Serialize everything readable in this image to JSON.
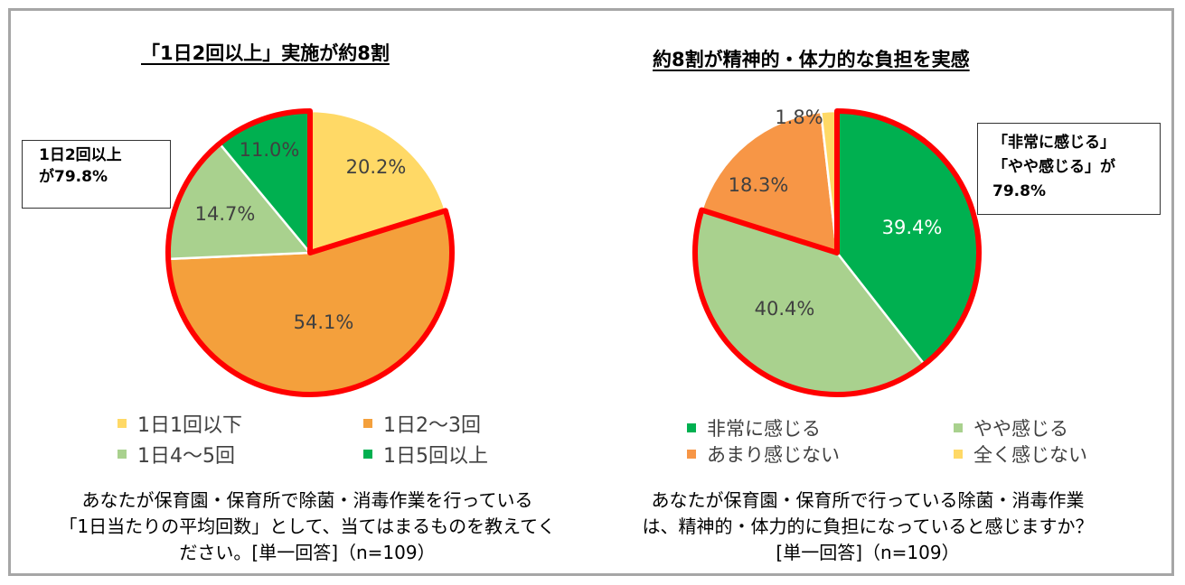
{
  "chart_data": [
    {
      "type": "pie",
      "title": "「1日2回以上」実施が約8割",
      "callout": [
        "1日2回以上",
        "が79.8%"
      ],
      "categories": [
        "1日1回以下",
        "1日2〜3回",
        "1日4〜5回",
        "1日5回以上"
      ],
      "values": [
        20.2,
        54.1,
        14.7,
        11.0
      ],
      "labels": [
        "20.2%",
        "54.1%",
        "14.7%",
        "11.0%"
      ],
      "colors": [
        "#ffd966",
        "#f4a03c",
        "#a9d18e",
        "#00b050"
      ],
      "highlighted": [
        "1日2〜3回",
        "1日4〜5回",
        "1日5回以上"
      ],
      "highlight_color": "#ff0000",
      "question": [
        "あなたが保育園・保育所で除菌・消毒作業を行っている",
        "「1日当たりの平均回数」として、当てはまるものを教えてく",
        "ださい。[単一回答]（n=109）"
      ]
    },
    {
      "type": "pie",
      "title": "約8割が精神的・体力的な負担を実感",
      "callout": [
        "「非常に感じる」",
        "「やや感じる」が",
        "79.8%"
      ],
      "categories": [
        "非常に感じる",
        "やや感じる",
        "あまり感じない",
        "全く感じない"
      ],
      "values": [
        39.4,
        40.4,
        18.3,
        1.8
      ],
      "labels": [
        "39.4%",
        "40.4%",
        "18.3%",
        "1.8%"
      ],
      "colors": [
        "#00b050",
        "#a9d18e",
        "#f79646",
        "#ffd966"
      ],
      "highlighted": [
        "非常に感じる",
        "やや感じる"
      ],
      "highlight_color": "#ff0000",
      "question": [
        "あなたが保育園・保育所で行っている除菌・消毒作業",
        "は、精神的・体力的に負担になっていると感じますか？",
        "[単一回答]（n=109）"
      ]
    }
  ]
}
